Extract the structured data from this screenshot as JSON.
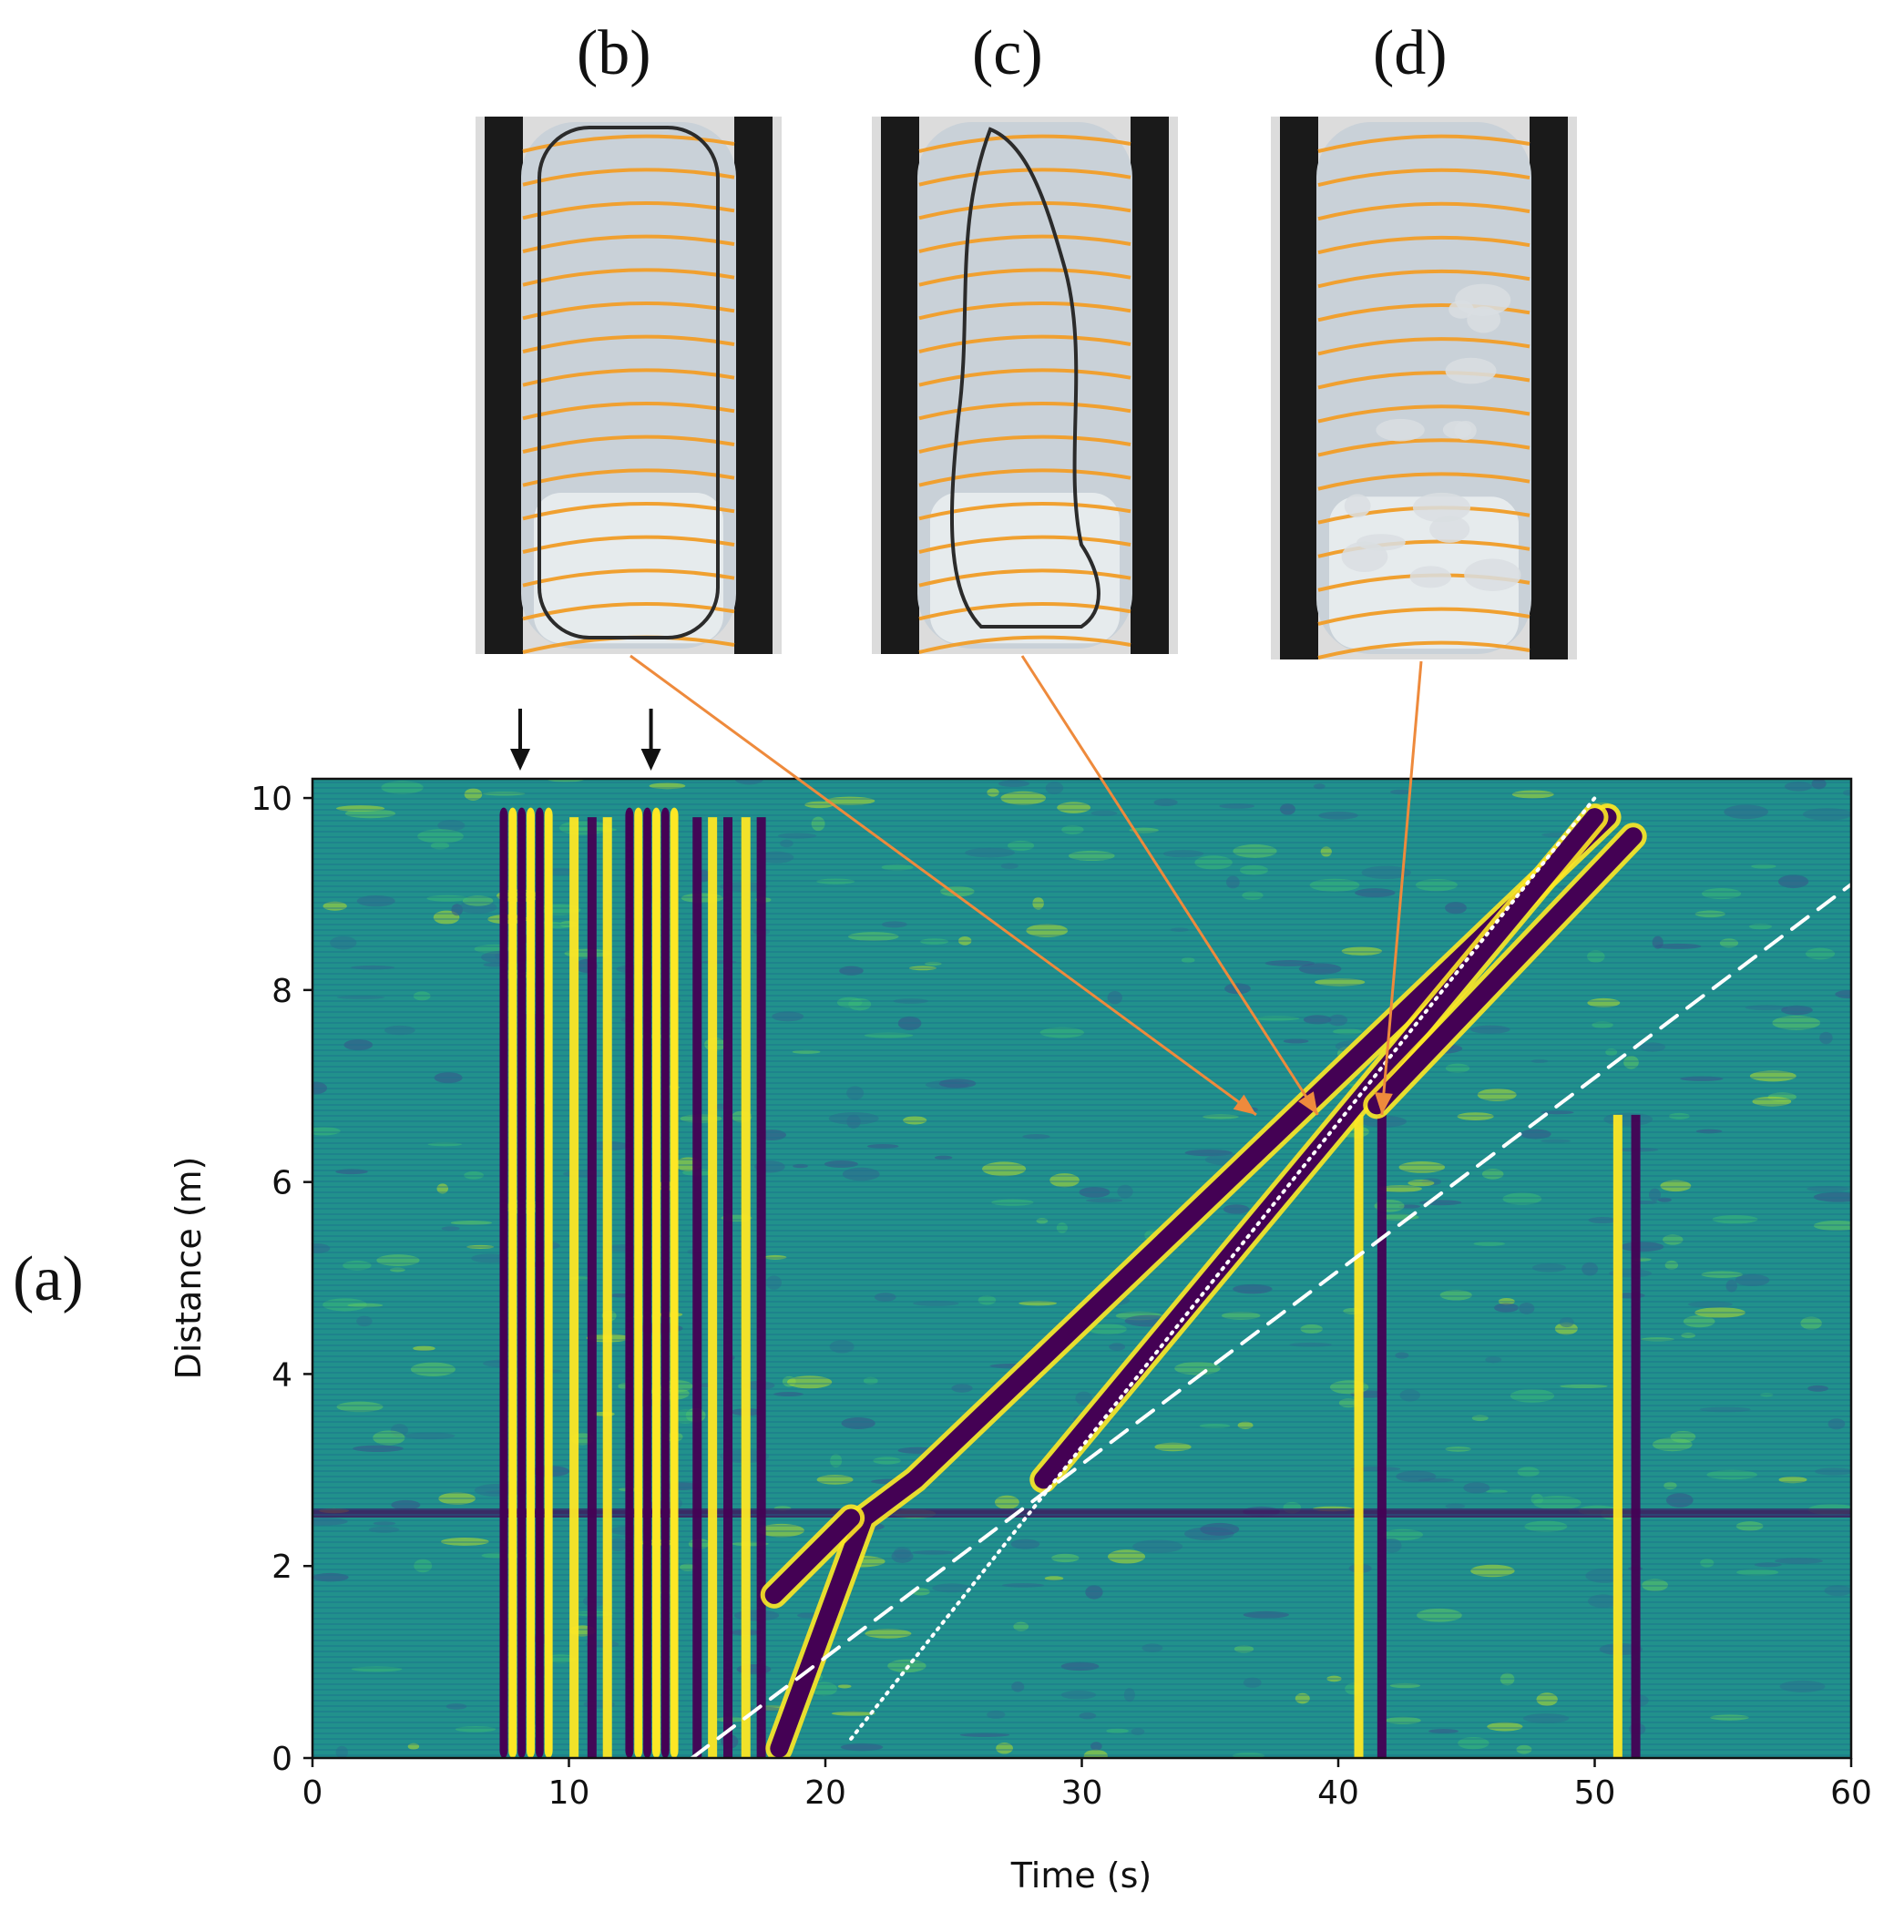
{
  "panel_labels": {
    "a": "(a)",
    "b": "(b)",
    "c": "(c)",
    "d": "(d)"
  },
  "photos": [
    {
      "id": "b",
      "label": "(b)",
      "bubble": "outlined-taylor-bubble",
      "bubble_color": "#2b2b2b"
    },
    {
      "id": "c",
      "label": "(c)",
      "bubble": "wavy-gas-outline",
      "bubble_color": "#2b2b2b"
    },
    {
      "id": "d",
      "label": "(d)",
      "bubble": "dispersed-churn",
      "bubble_color": "#d9dee2"
    }
  ],
  "colors": {
    "background_field": "#21918c",
    "dark_band": "#440154",
    "bright_band": "#fde725",
    "annotation_arrow": "#ee8a3c",
    "reference_lines": "#ffffff",
    "photo_frame": "#1a1a1a",
    "coil": "#f0a030"
  },
  "chart_data": {
    "type": "heatmap",
    "xlabel": "Time (s)",
    "ylabel": "Distance (m)",
    "xlim": [
      0,
      60
    ],
    "ylim": [
      0,
      10.2
    ],
    "x_ticks": [
      0,
      10,
      20,
      30,
      40,
      50,
      60
    ],
    "y_ticks": [
      0,
      2,
      4,
      6,
      8,
      10
    ],
    "colormap": "viridis",
    "injection_markers_time_s": [
      8.1,
      13.2
    ],
    "vertical_streaks": {
      "burst_1": {
        "t_start": 7.3,
        "t_end": 9.4
      },
      "burst_2": {
        "t_start": 12.2,
        "t_end": 14.3
      },
      "trailing_streaks_t": [
        10.2,
        10.9,
        11.5,
        15.0,
        15.6,
        16.2,
        16.9,
        17.5,
        40.8,
        41.7,
        50.9,
        51.6
      ]
    },
    "bands": [
      {
        "name": "",
        "points": [
          [
            18.2,
            0.1
          ],
          [
            21.5,
            2.5
          ],
          [
            23.5,
            2.9
          ],
          [
            50.5,
            9.8
          ]
        ]
      },
      {
        "name": "",
        "points": [
          [
            18.0,
            1.7
          ],
          [
            21.0,
            2.5
          ]
        ]
      },
      {
        "name": "",
        "points": [
          [
            28.5,
            2.9
          ],
          [
            50.0,
            9.8
          ]
        ]
      },
      {
        "name": "",
        "points": [
          [
            41.5,
            6.8
          ],
          [
            51.5,
            9.6
          ]
        ]
      }
    ],
    "reference_lines": [
      {
        "style": "dotted",
        "points": [
          [
            21.0,
            0.2
          ],
          [
            50.0,
            10.0
          ]
        ]
      },
      {
        "style": "dashed",
        "points": [
          [
            14.8,
            0
          ],
          [
            60.0,
            9.1
          ]
        ]
      }
    ],
    "annotations": [
      {
        "from_photo": "(b)",
        "to": [
          36.8,
          6.7
        ]
      },
      {
        "from_photo": "(c)",
        "to": [
          39.2,
          6.7
        ]
      },
      {
        "from_photo": "(d)",
        "to": [
          41.7,
          6.7
        ]
      }
    ]
  }
}
